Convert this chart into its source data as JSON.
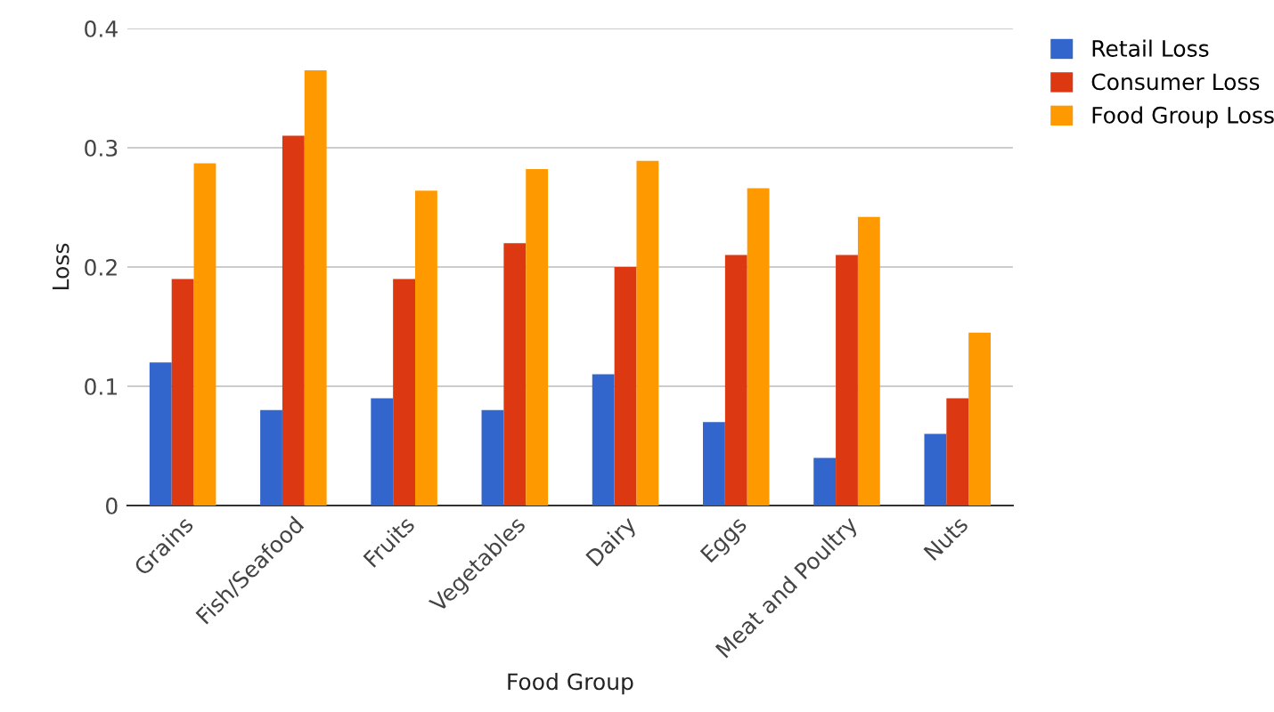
{
  "chart_data": {
    "type": "bar",
    "xlabel": "Food Group",
    "ylabel": "Loss",
    "categories": [
      "Grains",
      "Fish/Seafood",
      "Fruits",
      "Vegetables",
      "Dairy",
      "Eggs",
      "Meat and Poultry",
      "Nuts"
    ],
    "series": [
      {
        "name": "Retail Loss",
        "color": "#3366cc",
        "values": [
          0.12,
          0.08,
          0.09,
          0.08,
          0.11,
          0.07,
          0.04,
          0.06
        ]
      },
      {
        "name": "Consumer Loss",
        "color": "#dc3912",
        "values": [
          0.19,
          0.31,
          0.19,
          0.22,
          0.2,
          0.21,
          0.21,
          0.09
        ]
      },
      {
        "name": "Food Group Loss",
        "color": "#ff9900",
        "values": [
          0.287,
          0.365,
          0.264,
          0.282,
          0.289,
          0.266,
          0.242,
          0.145
        ]
      }
    ],
    "ylim": [
      0,
      0.4
    ],
    "yticks": [
      0,
      0.1,
      0.2,
      0.3,
      0.4
    ],
    "grid": "y",
    "legend": "top right"
  }
}
